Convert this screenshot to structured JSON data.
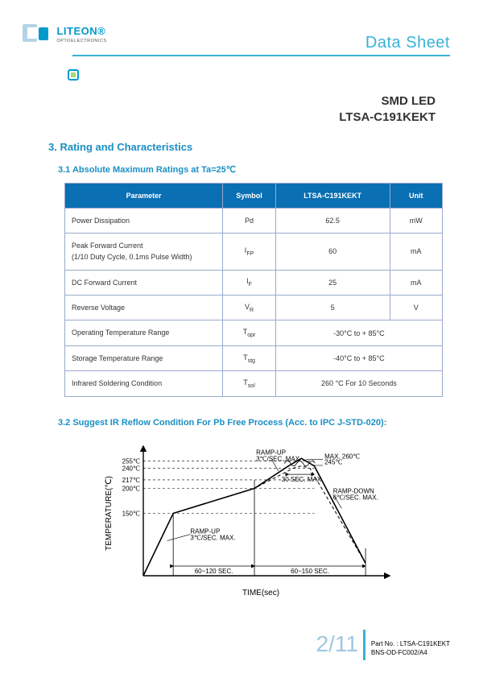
{
  "header": {
    "brand_main": "LITEON®",
    "brand_sub": "OPTOELECTRONICS",
    "page_type": "Data Sheet",
    "logo_color": "#0099cc",
    "rule_color": "#3ab1d8"
  },
  "title": {
    "line1": "SMD  LED",
    "line2": "LTSA-C191KEKT"
  },
  "section3": {
    "heading": "3. Rating and Characteristics",
    "sub31_heading": "3.1 Absolute Maximum Ratings at Ta=25℃",
    "table": {
      "header_bg": "#0a6fb3",
      "header_fg": "#ffffff",
      "border_color": "#9ac",
      "columns": [
        "Parameter",
        "Symbol",
        "LTSA-C191KEKT",
        "Unit"
      ],
      "rows": [
        {
          "param": "Power Dissipation",
          "symbol": "Pd",
          "value": "62.5",
          "unit": "mW",
          "span": false
        },
        {
          "param": "Peak Forward Current\n(1/10 Duty Cycle, 0.1ms Pulse Width)",
          "symbol": "IFP",
          "value": "60",
          "unit": "mA",
          "span": false
        },
        {
          "param": "DC Forward Current",
          "symbol": "IF",
          "value": "25",
          "unit": "mA",
          "span": false
        },
        {
          "param": "Reverse Voltage",
          "symbol": "VR",
          "value": "5",
          "unit": "V",
          "span": false
        },
        {
          "param": "Operating Temperature Range",
          "symbol": "Topr",
          "value": "-30°C to + 85°C",
          "unit": "",
          "span": true
        },
        {
          "param": "Storage Temperature Range",
          "symbol": "Tstg",
          "value": "-40°C to + 85°C",
          "unit": "",
          "span": true
        },
        {
          "param": "Infrared Soldering Condition",
          "symbol": "Tsol",
          "value": "260 °C For 10 Seconds",
          "unit": "",
          "span": true
        }
      ]
    },
    "sub32_heading": "3.2 Suggest IR Reflow Condition For Pb Free Process (Acc. to IPC J-STD-020):"
  },
  "chart": {
    "type": "line",
    "x_label": "TIME(sec)",
    "y_label": "TEMPERATURE(℃)",
    "y_ticks": [
      "150℃",
      "200℃",
      "217℃",
      "240℃",
      "255℃"
    ],
    "annotations": {
      "rampup1": "RAMP-UP\n3℃/SEC. MAX.",
      "rampup2": "RAMP-UP\n3℃/SEC. MAX.",
      "rampdown": "RAMP-DOWN\n6℃/SEC. MAX.",
      "peak_max": "MAX. 260℃",
      "peak_min": "245℃",
      "peak_dur": "30 SEC. MAX",
      "preheat_dur": "60~120 SEC.",
      "total_dur": "60~150 SEC."
    },
    "profile_max": [
      {
        "t": 0,
        "T": 25
      },
      {
        "t": 35,
        "T": 150
      },
      {
        "t": 130,
        "T": 200
      },
      {
        "t": 170,
        "T": 245
      },
      {
        "t": 185,
        "T": 260
      },
      {
        "t": 200,
        "T": 245
      },
      {
        "t": 260,
        "T": 50
      }
    ],
    "profile_min": [
      {
        "t": 0,
        "T": 25
      },
      {
        "t": 35,
        "T": 150
      },
      {
        "t": 130,
        "T": 200
      },
      {
        "t": 175,
        "T": 240
      },
      {
        "t": 185,
        "T": 245
      },
      {
        "t": 195,
        "T": 240
      },
      {
        "t": 260,
        "T": 50
      }
    ],
    "line_color": "#000000",
    "dash_color": "#000000",
    "axis_color": "#000000",
    "font_size_labels": 8,
    "font_size_axis": 10
  },
  "footer": {
    "page": "2/11",
    "partno_label": "Part No. :",
    "partno": "LTSA-C191KEKT",
    "docno": "BNS-OD-FC002/A4"
  }
}
